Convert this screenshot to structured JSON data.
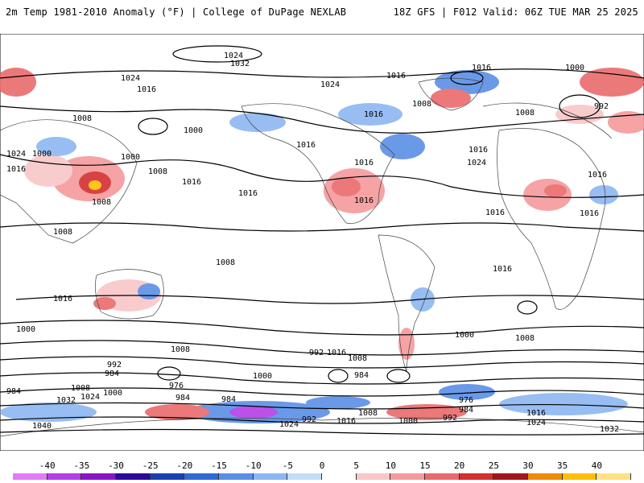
{
  "header": {
    "left": "2m Temp 1981-2010 Anomaly (°F) | College of DuPage NEXLAB",
    "right": "18Z GFS | F012 Valid: 06Z TUE MAR 25 2025"
  },
  "isobar_labels": [
    "1024",
    "1032",
    "1016",
    "1016",
    "1024",
    "1016",
    "1008",
    "1000",
    "1008",
    "992",
    "1008",
    "1000",
    "1016",
    "1016",
    "1024",
    "1000",
    "1024",
    "1016",
    "1008",
    "1016",
    "1016",
    "1008",
    "1008",
    "1016",
    "1016",
    "1016",
    "1016",
    "1024",
    "1016",
    "1016",
    "1000",
    "1016",
    "1008",
    "1016",
    "992",
    "1008",
    "984",
    "992",
    "1000",
    "984",
    "984",
    "976",
    "984",
    "1008",
    "984",
    "1024",
    "1000",
    "1032",
    "1040",
    "1008",
    "992",
    "976",
    "984",
    "992",
    "1016",
    "1024",
    "1032",
    "1024",
    "1000",
    "1016",
    "1008",
    "1008",
    "1000",
    "1000",
    "1016"
  ],
  "colorbar": {
    "ticks": [
      "-40",
      "-35",
      "-30",
      "-25",
      "-20",
      "-15",
      "-10",
      "-5",
      "0",
      "5",
      "10",
      "15",
      "20",
      "25",
      "30",
      "35",
      "40"
    ],
    "colors": [
      "#e07bf5",
      "#b43ee8",
      "#8a14c8",
      "#2b0a9a",
      "#1a3fb5",
      "#2f6bd6",
      "#5a8fe6",
      "#8cb6f2",
      "#c3dcf8",
      "#ffffff",
      "#f8c6c8",
      "#f49a9c",
      "#ea6a6c",
      "#d32f30",
      "#a3151a",
      "#f08a00",
      "#ffbf00",
      "#ffe082"
    ]
  }
}
